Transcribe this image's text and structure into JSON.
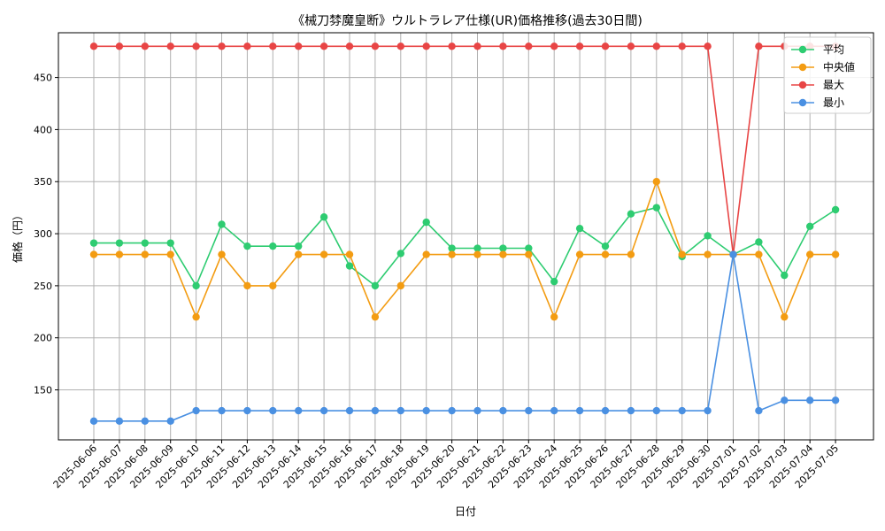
{
  "chart_data": {
    "type": "line",
    "title": "《械刀棼魔皇断》ウルトラレア仕様(UR)価格推移(過去30日間)",
    "xlabel": "日付",
    "ylabel": "価格（円）",
    "ylim": [
      102,
      493
    ],
    "yticks": [
      150,
      200,
      250,
      300,
      350,
      400,
      450
    ],
    "grid": true,
    "legend_position": "top-right",
    "categories": [
      "2025-06-06",
      "2025-06-07",
      "2025-06-08",
      "2025-06-09",
      "2025-06-10",
      "2025-06-11",
      "2025-06-12",
      "2025-06-13",
      "2025-06-14",
      "2025-06-15",
      "2025-06-16",
      "2025-06-17",
      "2025-06-18",
      "2025-06-19",
      "2025-06-20",
      "2025-06-21",
      "2025-06-22",
      "2025-06-23",
      "2025-06-24",
      "2025-06-25",
      "2025-06-26",
      "2025-06-27",
      "2025-06-28",
      "2025-06-29",
      "2025-06-30",
      "2025-07-01",
      "2025-07-02",
      "2025-07-03",
      "2025-07-04",
      "2025-07-05"
    ],
    "series": [
      {
        "name": "平均",
        "color": "#2ecc71",
        "values": [
          291,
          291,
          291,
          291,
          250,
          309,
          288,
          288,
          288,
          316,
          269,
          250,
          281,
          311,
          286,
          286,
          286,
          286,
          254,
          305,
          288,
          319,
          325,
          278,
          298,
          280,
          292,
          260,
          307,
          323
        ]
      },
      {
        "name": "中央値",
        "color": "#f39c12",
        "values": [
          280,
          280,
          280,
          280,
          220,
          280,
          250,
          250,
          280,
          280,
          280,
          220,
          250,
          280,
          280,
          280,
          280,
          280,
          220,
          280,
          280,
          280,
          350,
          280,
          280,
          280,
          280,
          220,
          280,
          280
        ]
      },
      {
        "name": "最大",
        "color": "#e84545",
        "values": [
          480,
          480,
          480,
          480,
          480,
          480,
          480,
          480,
          480,
          480,
          480,
          480,
          480,
          480,
          480,
          480,
          480,
          480,
          480,
          480,
          480,
          480,
          480,
          480,
          480,
          280,
          480,
          480,
          480,
          480
        ]
      },
      {
        "name": "最小",
        "color": "#4a90e2",
        "values": [
          120,
          120,
          120,
          120,
          130,
          130,
          130,
          130,
          130,
          130,
          130,
          130,
          130,
          130,
          130,
          130,
          130,
          130,
          130,
          130,
          130,
          130,
          130,
          130,
          130,
          280,
          130,
          140,
          140,
          140
        ]
      }
    ]
  }
}
